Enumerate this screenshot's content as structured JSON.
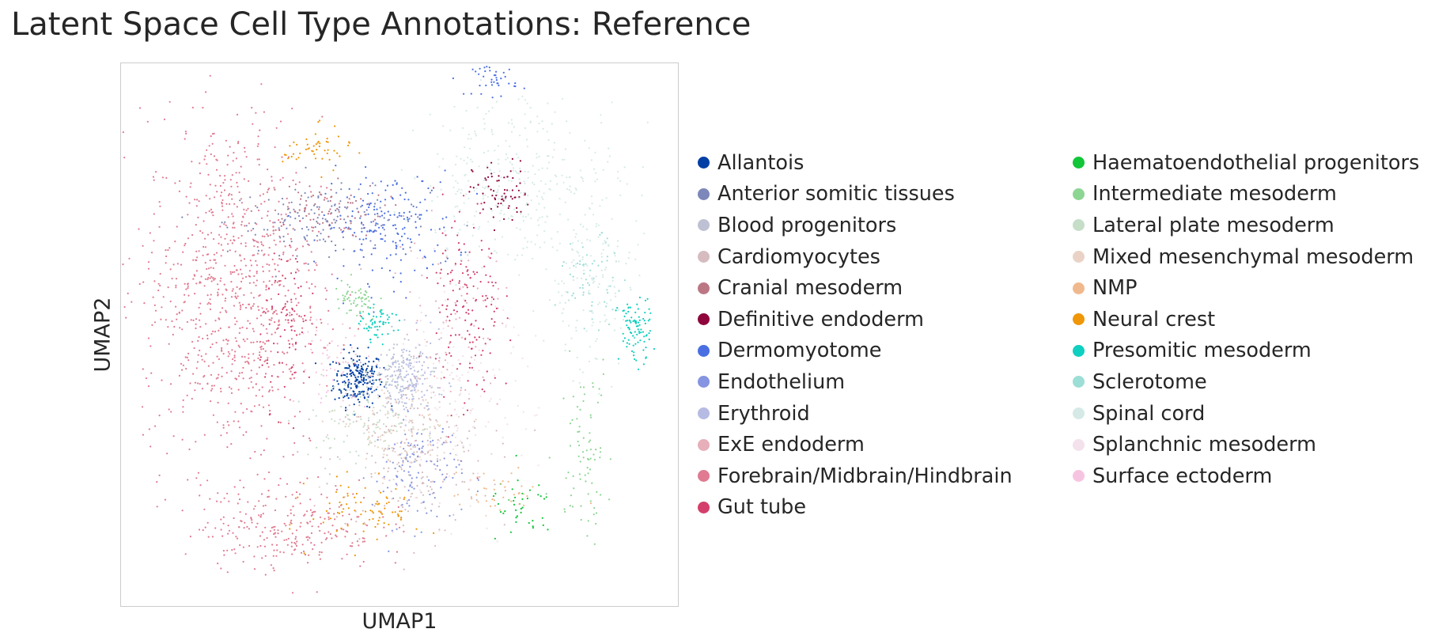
{
  "chart_data": {
    "type": "scatter",
    "title": "Latent Space Cell Type Annotations: Reference",
    "xlabel": "UMAP1",
    "ylabel": "UMAP2",
    "grid": false,
    "ticks": false,
    "legend_placement": "right, two columns",
    "xlim": [
      0,
      100
    ],
    "ylim": [
      0,
      100
    ],
    "series": [
      {
        "name": "Allantois",
        "color": "#023fa5",
        "clusters": [
          {
            "x": 42.5,
            "y": 42,
            "sx": 2.2,
            "sy": 2.5,
            "n": 220
          }
        ]
      },
      {
        "name": "Anterior somitic tissues",
        "color": "#7d87b9",
        "clusters": [
          {
            "x": 37,
            "y": 71,
            "sx": 9,
            "sy": 3,
            "n": 160
          }
        ]
      },
      {
        "name": "Blood progenitors",
        "color": "#bec1d4",
        "clusters": [
          {
            "x": 50,
            "y": 42,
            "sx": 2.5,
            "sy": 3,
            "n": 120
          }
        ]
      },
      {
        "name": "Cardiomyocytes",
        "color": "#d6bcc0",
        "clusters": [
          {
            "x": 52,
            "y": 27,
            "sx": 7,
            "sy": 7,
            "n": 220
          }
        ]
      },
      {
        "name": "Cranial mesoderm",
        "color": "#bb7784",
        "clusters": [
          {
            "x": 35,
            "y": 73,
            "sx": 6,
            "sy": 2.5,
            "n": 90
          }
        ]
      },
      {
        "name": "Definitive endoderm",
        "color": "#8e063b",
        "clusters": [
          {
            "x": 68,
            "y": 76,
            "sx": 2.5,
            "sy": 3,
            "n": 70
          }
        ]
      },
      {
        "name": "Dermomyotome",
        "color": "#4a6fe3",
        "clusters": [
          {
            "x": 48,
            "y": 70,
            "sx": 6,
            "sy": 5,
            "n": 180
          },
          {
            "x": 67,
            "y": 97,
            "sx": 2,
            "sy": 1.5,
            "n": 40
          }
        ]
      },
      {
        "name": "Endothelium",
        "color": "#8595e1",
        "clusters": [
          {
            "x": 53,
            "y": 25,
            "sx": 4,
            "sy": 5,
            "n": 120
          }
        ]
      },
      {
        "name": "Erythroid",
        "color": "#b5bbe3",
        "clusters": [
          {
            "x": 52,
            "y": 42,
            "sx": 3,
            "sy": 4,
            "n": 140
          }
        ]
      },
      {
        "name": "ExE endoderm",
        "color": "#e6afb9",
        "clusters": [
          {
            "x": 58,
            "y": 52,
            "sx": 5,
            "sy": 8,
            "n": 80
          }
        ]
      },
      {
        "name": "Forebrain/Midbrain/Hindbrain",
        "color": "#e07b91",
        "clusters": [
          {
            "x": 20,
            "y": 58,
            "sx": 8,
            "sy": 16,
            "n": 900
          },
          {
            "x": 30,
            "y": 15,
            "sx": 8,
            "sy": 4,
            "n": 250
          }
        ]
      },
      {
        "name": "Gut tube",
        "color": "#d33f6a",
        "clusters": [
          {
            "x": 62,
            "y": 55,
            "sx": 3,
            "sy": 10,
            "n": 160
          },
          {
            "x": 30,
            "y": 52,
            "sx": 2.5,
            "sy": 7,
            "n": 90
          }
        ]
      },
      {
        "name": "Haematoendothelial progenitors",
        "color": "#11c638",
        "clusters": [
          {
            "x": 72,
            "y": 18,
            "sx": 3,
            "sy": 3,
            "n": 40
          }
        ]
      },
      {
        "name": "Intermediate mesoderm",
        "color": "#8dd593",
        "clusters": [
          {
            "x": 42,
            "y": 56,
            "sx": 2,
            "sy": 2,
            "n": 60
          },
          {
            "x": 83,
            "y": 30,
            "sx": 2.5,
            "sy": 8,
            "n": 80
          }
        ]
      },
      {
        "name": "Lateral plate mesoderm",
        "color": "#c6dec7",
        "clusters": [
          {
            "x": 44,
            "y": 35,
            "sx": 5,
            "sy": 4,
            "n": 120
          }
        ]
      },
      {
        "name": "Mixed mesenchymal mesoderm",
        "color": "#ead3c6",
        "clusters": [
          {
            "x": 50,
            "y": 32,
            "sx": 6,
            "sy": 5,
            "n": 120
          }
        ]
      },
      {
        "name": "NMP",
        "color": "#f0b98d",
        "clusters": [
          {
            "x": 67,
            "y": 21,
            "sx": 4,
            "sy": 2,
            "n": 40
          }
        ]
      },
      {
        "name": "Neural crest",
        "color": "#ef9708",
        "clusters": [
          {
            "x": 44,
            "y": 18,
            "sx": 5,
            "sy": 3,
            "n": 80
          },
          {
            "x": 35,
            "y": 84,
            "sx": 3,
            "sy": 2,
            "n": 50
          }
        ]
      },
      {
        "name": "Presomitic mesoderm",
        "color": "#0fcfc0",
        "clusters": [
          {
            "x": 92,
            "y": 51,
            "sx": 1.5,
            "sy": 3,
            "n": 90
          },
          {
            "x": 46,
            "y": 52,
            "sx": 1.5,
            "sy": 1.5,
            "n": 60
          }
        ]
      },
      {
        "name": "Sclerotome",
        "color": "#9cded6",
        "clusters": [
          {
            "x": 84,
            "y": 60,
            "sx": 3,
            "sy": 4,
            "n": 60
          }
        ]
      },
      {
        "name": "Spinal cord",
        "color": "#d5eae7",
        "clusters": [
          {
            "x": 72,
            "y": 78,
            "sx": 9,
            "sy": 8,
            "n": 350
          },
          {
            "x": 84,
            "y": 58,
            "sx": 4,
            "sy": 8,
            "n": 120
          }
        ]
      },
      {
        "name": "Splanchnic mesoderm",
        "color": "#f3e1eb",
        "clusters": [
          {
            "x": 60,
            "y": 38,
            "sx": 7,
            "sy": 10,
            "n": 140
          }
        ]
      },
      {
        "name": "Surface ectoderm",
        "color": "#f6c4e1",
        "clusters": [
          {
            "x": 38,
            "y": 45,
            "sx": 3,
            "sy": 4,
            "n": 60
          }
        ]
      }
    ]
  }
}
